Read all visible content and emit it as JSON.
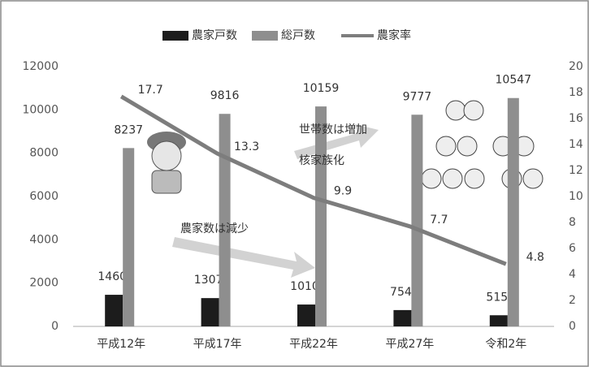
{
  "chart_data": {
    "type": "bar",
    "categories": [
      "平成12年",
      "平成17年",
      "平成22年",
      "平成27年",
      "令和2年"
    ],
    "series": [
      {
        "name": "農家戸数",
        "color": "#1c1c1c",
        "values": [
          1460,
          1307,
          1010,
          754,
          515
        ]
      },
      {
        "name": "総戸数",
        "color": "#8e8e8e",
        "values": [
          8237,
          9816,
          10159,
          9777,
          10547
        ]
      },
      {
        "name": "農家率",
        "type": "line",
        "axis": "y2",
        "color": "#7d7d7d",
        "values": [
          17.7,
          13.3,
          9.9,
          7.7,
          4.8
        ]
      }
    ],
    "ylim": [
      0,
      12000
    ],
    "yticks": [
      0,
      2000,
      4000,
      6000,
      8000,
      10000,
      12000
    ],
    "y2lim": [
      0,
      20
    ],
    "y2ticks": [
      0,
      2,
      4,
      6,
      8,
      10,
      12,
      14,
      16,
      18,
      20
    ],
    "legend": "top",
    "annotations": [
      "世帯数は増加",
      "核家族化",
      "農家数は減少"
    ]
  }
}
